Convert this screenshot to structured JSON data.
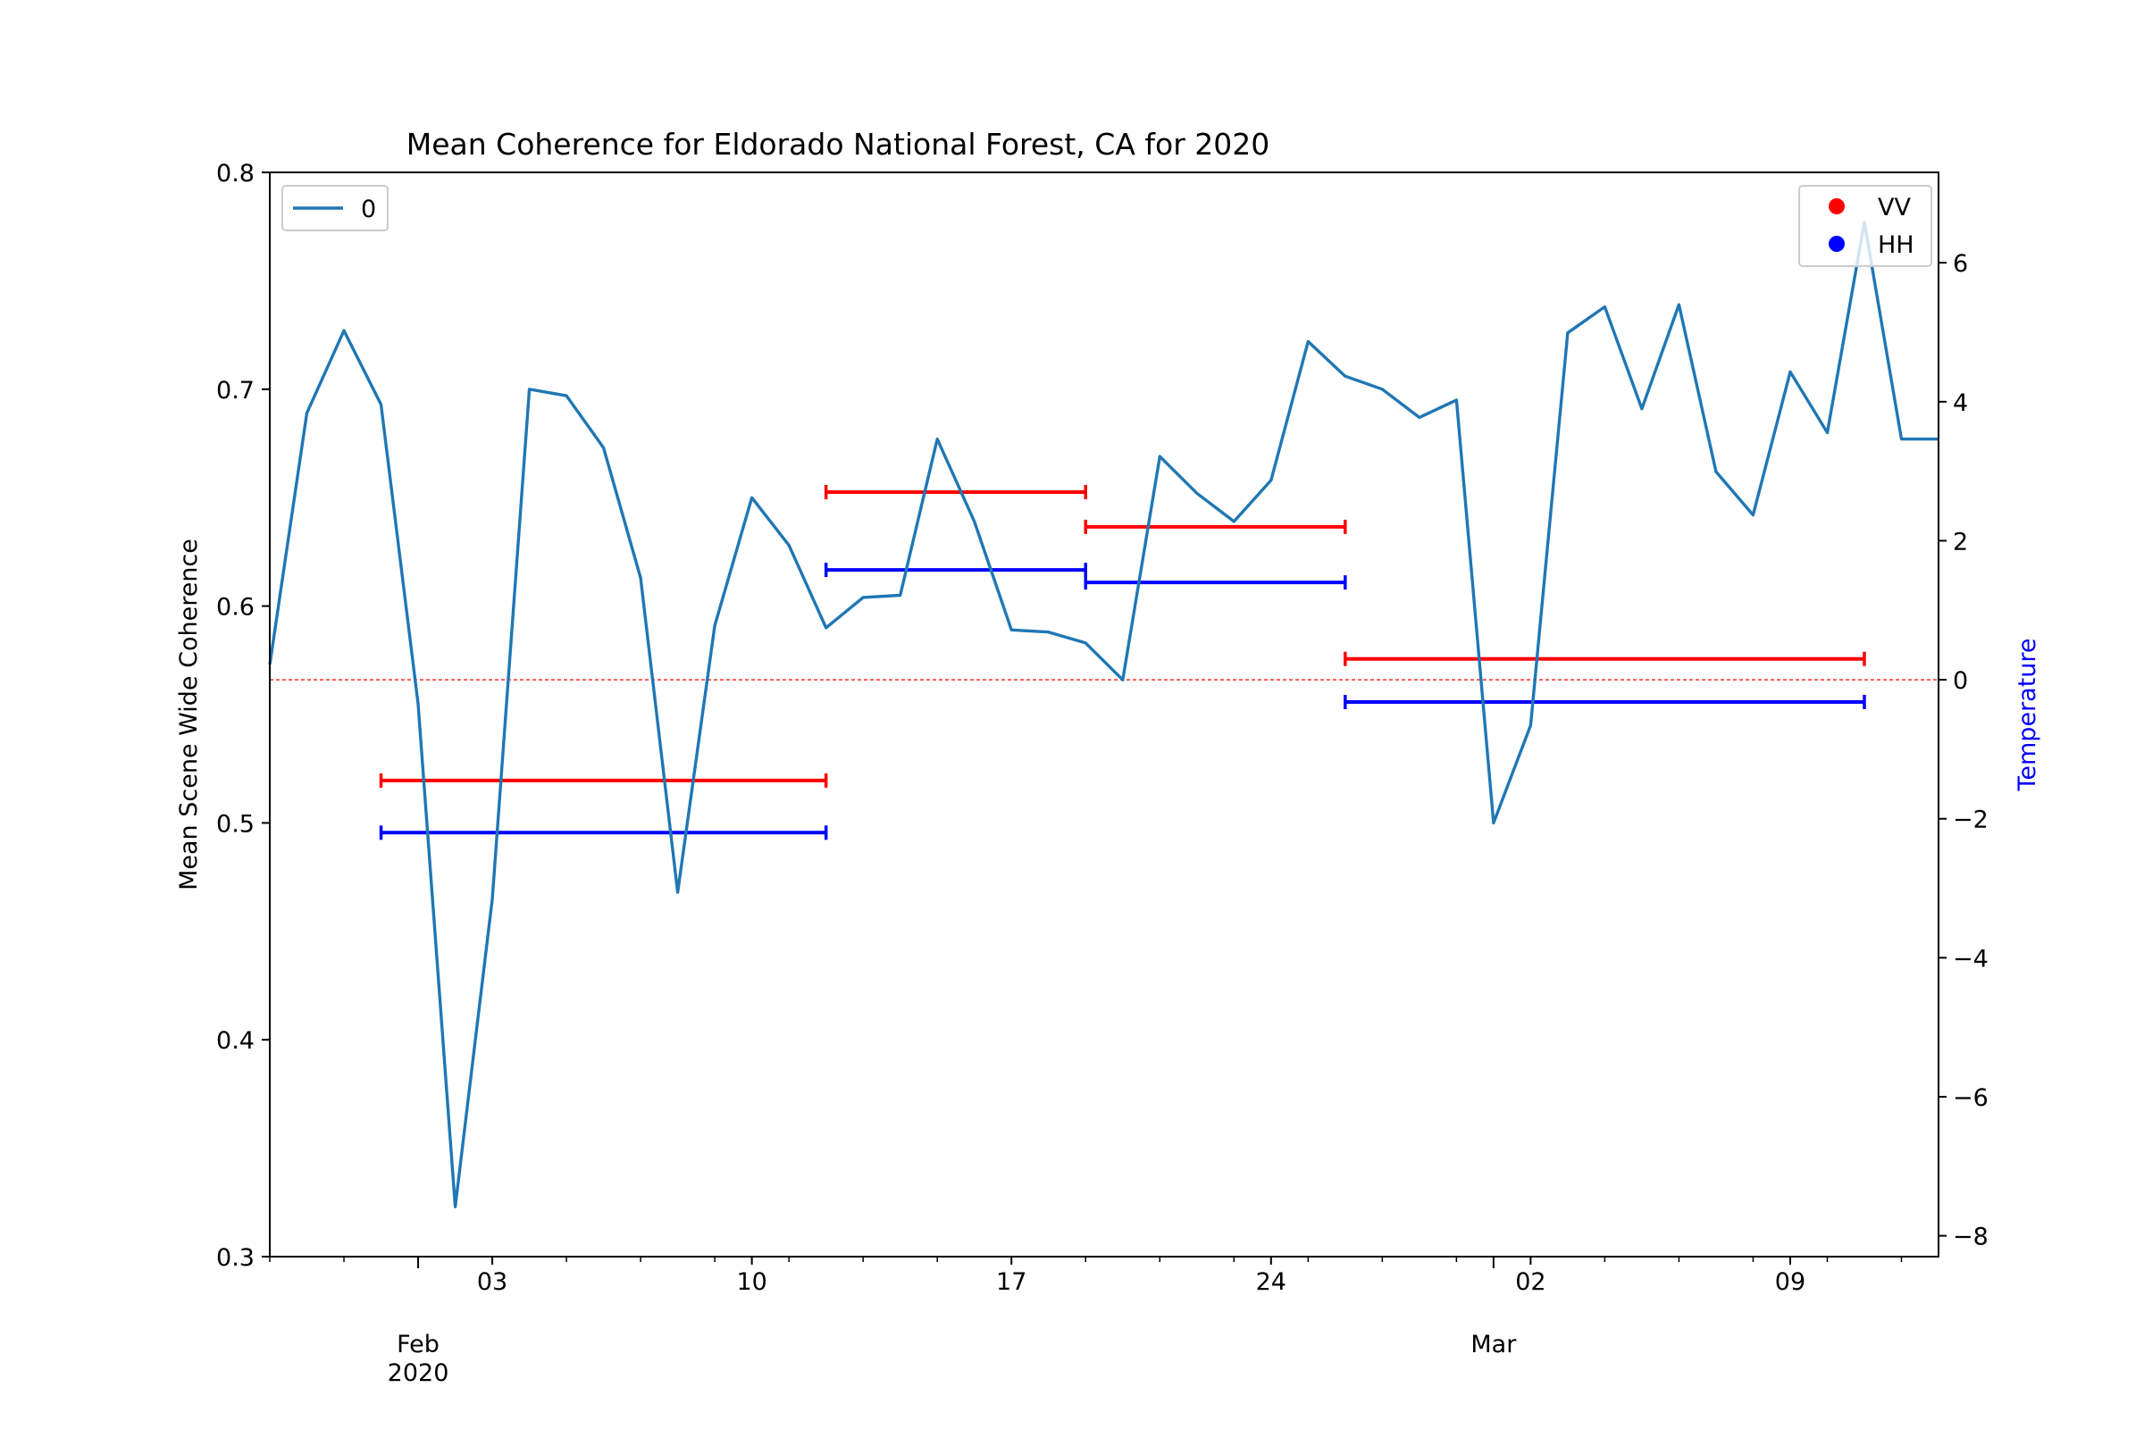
{
  "chart_data": {
    "type": "line",
    "title": "Mean Coherence for Eldorado National Forest, CA for 2020",
    "ylabel": "Mean Scene Wide Coherence",
    "y2label": "Temperature",
    "ylim": [
      0.3,
      0.8
    ],
    "y2lim": [
      -8.3,
      7.3
    ],
    "xlim": [
      "2020-01-28",
      "2020-03-13"
    ],
    "yticks": [
      "0.3",
      "0.4",
      "0.5",
      "0.6",
      "0.7",
      "0.8"
    ],
    "y2ticks": [
      "−8",
      "−6",
      "−4",
      "−2",
      "0",
      "2",
      "4",
      "6"
    ],
    "xticks": [
      {
        "date": "2020-02-03",
        "label": "03"
      },
      {
        "date": "2020-02-10",
        "label": "10"
      },
      {
        "date": "2020-02-17",
        "label": "17"
      },
      {
        "date": "2020-02-24",
        "label": "24"
      },
      {
        "date": "2020-03-02",
        "label": "02"
      },
      {
        "date": "2020-03-09",
        "label": "09"
      }
    ],
    "xmajor": [
      {
        "date": "2020-02-01",
        "label": "Feb",
        "sublabel": "2020"
      },
      {
        "date": "2020-03-01",
        "label": "Mar",
        "sublabel": ""
      }
    ],
    "legend_left": {
      "label": "0",
      "position": "upper-left"
    },
    "legend_right": {
      "position": "upper-right",
      "items": [
        {
          "label": "VV",
          "color": "#ff0000"
        },
        {
          "label": "HH",
          "color": "#0000ff"
        }
      ]
    },
    "series": [
      {
        "name": "0",
        "color": "#1f77b4",
        "x": [
          "2020-01-28",
          "2020-01-29",
          "2020-01-30",
          "2020-01-31",
          "2020-02-01",
          "2020-02-02",
          "2020-02-03",
          "2020-02-04",
          "2020-02-05",
          "2020-02-06",
          "2020-02-07",
          "2020-02-08",
          "2020-02-09",
          "2020-02-10",
          "2020-02-11",
          "2020-02-12",
          "2020-02-13",
          "2020-02-14",
          "2020-02-15",
          "2020-02-16",
          "2020-02-17",
          "2020-02-18",
          "2020-02-19",
          "2020-02-20",
          "2020-02-21",
          "2020-02-22",
          "2020-02-23",
          "2020-02-24",
          "2020-02-25",
          "2020-02-26",
          "2020-02-27",
          "2020-02-28",
          "2020-02-29",
          "2020-03-01",
          "2020-03-02",
          "2020-03-03",
          "2020-03-04",
          "2020-03-05",
          "2020-03-06",
          "2020-03-07",
          "2020-03-08",
          "2020-03-09",
          "2020-03-10",
          "2020-03-11",
          "2020-03-12",
          "2020-03-13"
        ],
        "y": [
          0.573,
          0.689,
          0.727,
          0.693,
          0.555,
          0.323,
          0.465,
          0.7,
          0.697,
          0.673,
          0.613,
          0.468,
          0.591,
          0.65,
          0.628,
          0.59,
          0.604,
          0.605,
          0.677,
          0.639,
          0.589,
          0.588,
          0.583,
          0.566,
          0.669,
          0.652,
          0.639,
          0.658,
          0.722,
          0.706,
          0.7,
          0.687,
          0.695,
          0.5,
          0.545,
          0.726,
          0.738,
          0.691,
          0.739,
          0.662,
          0.642,
          0.708,
          0.68,
          0.777,
          0.677,
          0.677
        ]
      }
    ],
    "baseline_y2": 0,
    "temperature_ranges": [
      {
        "series": "VV",
        "color": "#ff0000",
        "start": "2020-01-31",
        "end": "2020-02-12",
        "value": -1.45
      },
      {
        "series": "HH",
        "color": "#0000ff",
        "start": "2020-01-31",
        "end": "2020-02-12",
        "value": -2.2
      },
      {
        "series": "VV",
        "color": "#ff0000",
        "start": "2020-02-12",
        "end": "2020-02-19",
        "value": 2.7
      },
      {
        "series": "HH",
        "color": "#0000ff",
        "start": "2020-02-12",
        "end": "2020-02-19",
        "value": 1.58
      },
      {
        "series": "VV",
        "color": "#ff0000",
        "start": "2020-02-19",
        "end": "2020-02-26",
        "value": 2.2
      },
      {
        "series": "HH",
        "color": "#0000ff",
        "start": "2020-02-19",
        "end": "2020-02-26",
        "value": 1.4
      },
      {
        "series": "VV",
        "color": "#ff0000",
        "start": "2020-02-26",
        "end": "2020-03-11",
        "value": 0.3
      },
      {
        "series": "HH",
        "color": "#0000ff",
        "start": "2020-02-26",
        "end": "2020-03-11",
        "value": -0.32
      }
    ]
  }
}
